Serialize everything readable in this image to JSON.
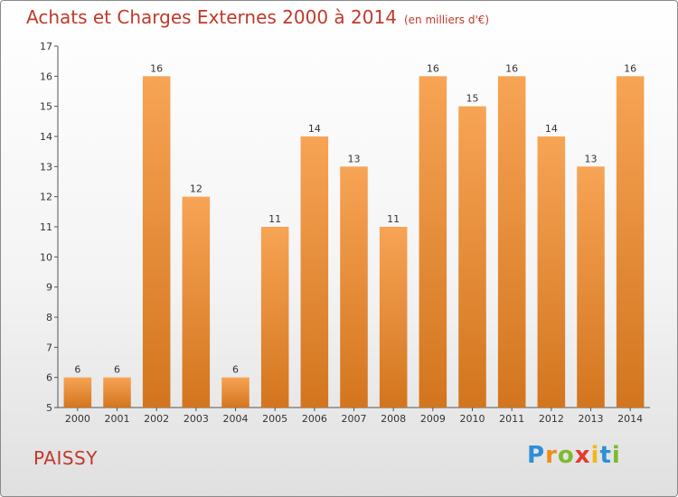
{
  "chart_data": {
    "type": "bar",
    "title": "Achats et Charges Externes 2000 à 2014",
    "subtitle": "(en milliers d'€)",
    "categories": [
      "2000",
      "2001",
      "2002",
      "2003",
      "2004",
      "2005",
      "2006",
      "2007",
      "2008",
      "2009",
      "2010",
      "2011",
      "2012",
      "2013",
      "2014"
    ],
    "values": [
      6,
      6,
      16,
      12,
      6,
      11,
      14,
      13,
      11,
      16,
      15,
      16,
      14,
      13,
      16
    ],
    "ylim": [
      5,
      17
    ],
    "yticks": [
      "5",
      "6",
      "7",
      "8",
      "9",
      "10",
      "11",
      "12",
      "13",
      "14",
      "15",
      "16",
      "17"
    ],
    "grid": false,
    "bar_color_top": "#f7a455",
    "bar_color_bottom": "#d3751e"
  },
  "commune": "PAISSY",
  "logo": {
    "letters": [
      "P",
      "r",
      "o",
      "x",
      "i",
      "t",
      "i"
    ],
    "colors": [
      "#2e8fd6",
      "#f08a1c",
      "#7cbb2e",
      "#e33b2e",
      "#f2b81c",
      "#2e8fd6",
      "#7cbb2e"
    ]
  }
}
